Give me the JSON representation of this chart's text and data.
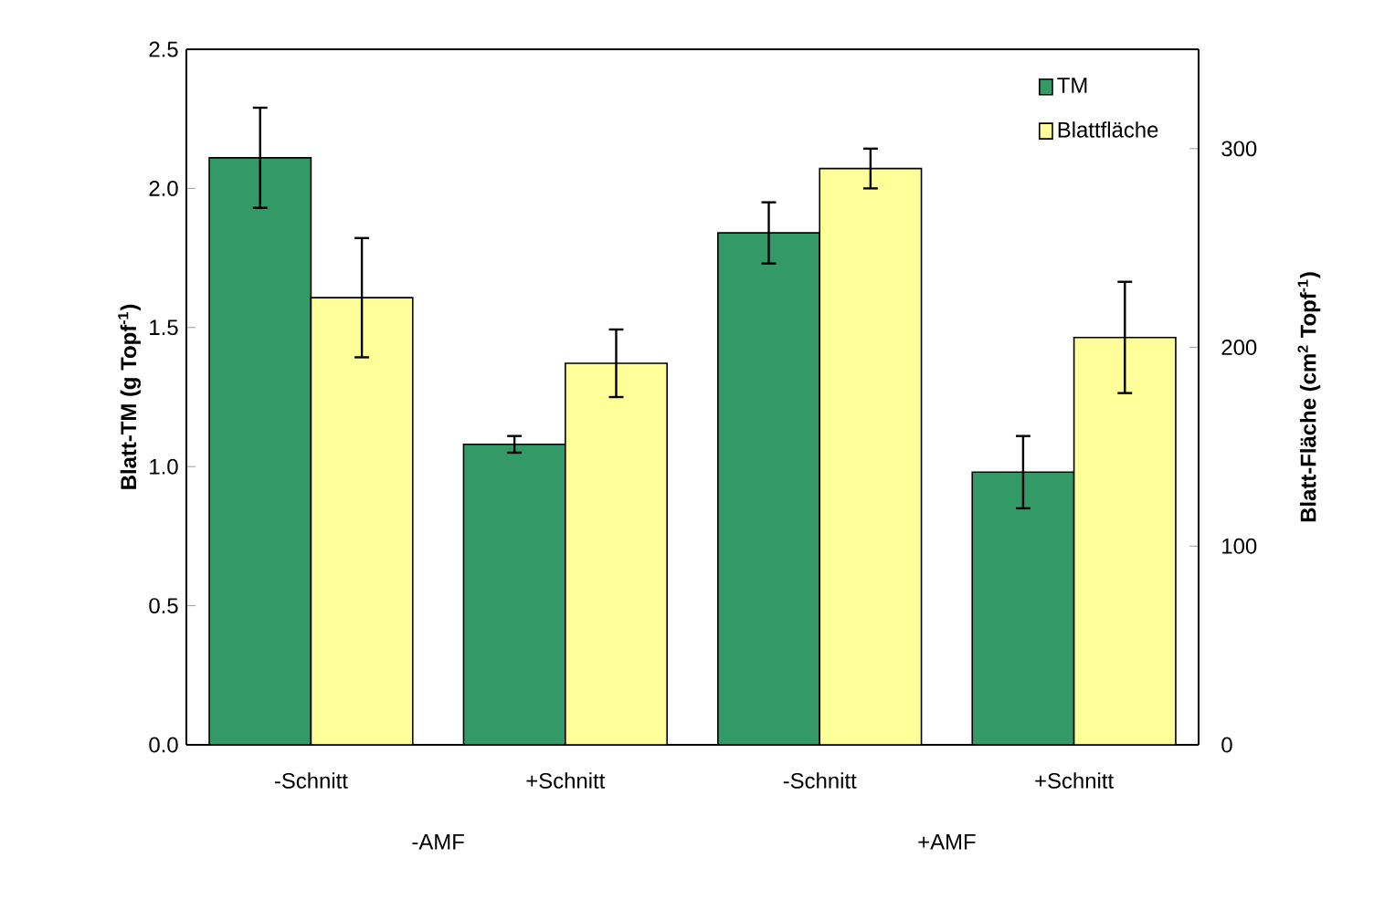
{
  "chart_data": {
    "type": "bar",
    "categories": [
      "-Schnitt",
      "+Schnitt",
      "-Schnitt",
      "+Schnitt"
    ],
    "ylabel": "Blatt-TM (g Topf$^{-1}$)",
    "y2label": "Blatt-Fläche (cm$^{2}$ Topf$^{-1}$)",
    "ylim": [
      0,
      2.5
    ],
    "yticks": [
      {
        "value": 0,
        "label": "0.0"
      },
      {
        "value": 0.5,
        "label": "0.5"
      },
      {
        "value": 1,
        "label": "1.0"
      },
      {
        "value": 1.5,
        "label": "1.5"
      },
      {
        "value": 2,
        "label": "2.0"
      },
      {
        "value": 2.5,
        "label": "2.5"
      }
    ],
    "y2lim": [
      0,
      350
    ],
    "y2ticks": [
      0,
      100,
      200,
      300
    ],
    "legend": "top right",
    "annotations": [
      "-AMF",
      "+AMF"
    ],
    "series": [
      {
        "name": "TM",
        "color": "#339966",
        "values": [
          2.11,
          1.08,
          1.84,
          0.98
        ],
        "errors": [
          0.18,
          0.03,
          0.11,
          0.13
        ]
      },
      {
        "name": "Blattfläche",
        "color": "#ffff99",
        "axis": "y2",
        "values": [
          225,
          192,
          290,
          205
        ],
        "errors": [
          30,
          17,
          10,
          28
        ]
      }
    ]
  }
}
